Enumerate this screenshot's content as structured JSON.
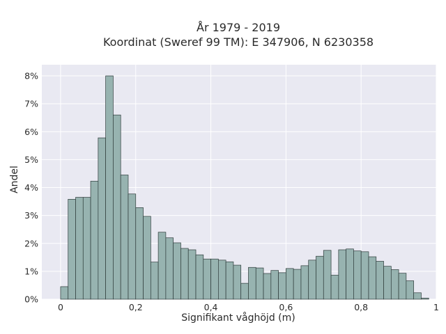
{
  "chart_data": {
    "type": "bar",
    "title_line1": "År 1979 - 2019",
    "title_line2": "Koordinat (Sweref 99 TM): E 347906, N 6230358",
    "xlabel": "Signifikant våghöjd (m)",
    "ylabel": "Andel",
    "xlim": [
      -0.05,
      1.0
    ],
    "ylim": [
      0,
      8.4
    ],
    "x_ticks": [
      0,
      0.2,
      0.4,
      0.6,
      0.8,
      1
    ],
    "x_tick_labels": [
      "0",
      "0,2",
      "0,4",
      "0,6",
      "0,8",
      "1"
    ],
    "y_ticks": [
      0,
      1,
      2,
      3,
      4,
      5,
      6,
      7,
      8
    ],
    "y_tick_labels": [
      "0%",
      "1%",
      "2%",
      "3%",
      "4%",
      "5%",
      "6%",
      "7%",
      "8%"
    ],
    "bin_start": 0,
    "bin_width": 0.02,
    "values": [
      0.45,
      3.58,
      3.65,
      3.65,
      4.23,
      5.78,
      8.0,
      6.6,
      4.45,
      3.77,
      3.28,
      2.97,
      1.33,
      2.4,
      2.2,
      2.02,
      1.82,
      1.77,
      1.59,
      1.44,
      1.44,
      1.4,
      1.34,
      1.22,
      0.57,
      1.14,
      1.12,
      0.92,
      1.03,
      0.95,
      1.1,
      1.07,
      1.2,
      1.4,
      1.54,
      1.75,
      0.86,
      1.77,
      1.8,
      1.73,
      1.7,
      1.52,
      1.36,
      1.18,
      1.06,
      0.93,
      0.66,
      0.23,
      0.04
    ],
    "background_color": "#e9e9f2",
    "bar_color": "#97b3b0",
    "grid": true
  }
}
